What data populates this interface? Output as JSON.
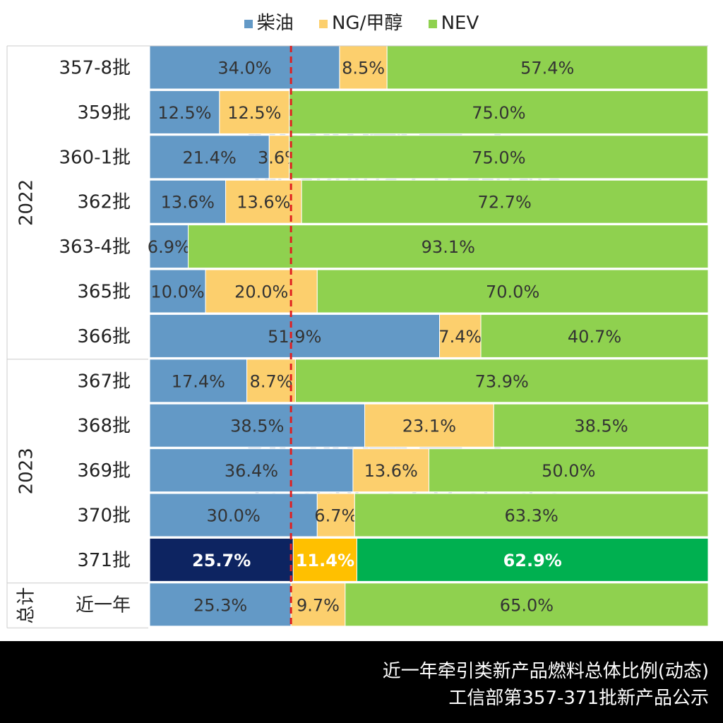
{
  "chart_data": {
    "type": "bar",
    "orientation": "horizontal",
    "stacked": true,
    "percent": true,
    "legend": {
      "placement": "top",
      "entries": [
        {
          "name": "柴油",
          "color": "#6399c6"
        },
        {
          "name": "NG/甲醇",
          "color": "#fccf6d"
        },
        {
          "name": "NEV",
          "color": "#8fd14f"
        }
      ]
    },
    "series_names": [
      "柴油",
      "NG/甲醇",
      "NEV"
    ],
    "groups": [
      {
        "label": "2022",
        "rows": [
          0,
          6
        ]
      },
      {
        "label": "2023",
        "rows": [
          7,
          11
        ]
      },
      {
        "label": "总计",
        "rows": [
          12,
          12
        ]
      }
    ],
    "rows": [
      {
        "label": "357-8批",
        "values": [
          34.0,
          8.5,
          57.4
        ],
        "labels": [
          "34.0%",
          "8.5%",
          "57.4%"
        ]
      },
      {
        "label": "359批",
        "values": [
          12.5,
          12.5,
          75.0
        ],
        "labels": [
          "12.5%",
          "12.5%",
          "75.0%"
        ]
      },
      {
        "label": "360-1批",
        "values": [
          21.4,
          3.6,
          75.0
        ],
        "labels": [
          "21.4%",
          "3.6%",
          "75.0%"
        ]
      },
      {
        "label": "362批",
        "values": [
          13.6,
          13.6,
          72.7
        ],
        "labels": [
          "13.6%",
          "13.6%",
          "72.7%"
        ]
      },
      {
        "label": "363-4批",
        "values": [
          6.9,
          0,
          93.1
        ],
        "labels": [
          "6.9%",
          "",
          "93.1%"
        ]
      },
      {
        "label": "365批",
        "values": [
          10.0,
          20.0,
          70.0
        ],
        "labels": [
          "10.0%",
          "20.0%",
          "70.0%"
        ]
      },
      {
        "label": "366批",
        "values": [
          51.9,
          7.4,
          40.7
        ],
        "labels": [
          "51.9%",
          "7.4%",
          "40.7%"
        ]
      },
      {
        "label": "367批",
        "values": [
          17.4,
          8.7,
          73.9
        ],
        "labels": [
          "17.4%",
          "8.7%",
          "73.9%"
        ]
      },
      {
        "label": "368批",
        "values": [
          38.5,
          23.1,
          38.5
        ],
        "labels": [
          "38.5%",
          "23.1%",
          "38.5%"
        ]
      },
      {
        "label": "369批",
        "values": [
          36.4,
          13.6,
          50.0
        ],
        "labels": [
          "36.4%",
          "13.6%",
          "50.0%"
        ]
      },
      {
        "label": "370批",
        "values": [
          30.0,
          6.7,
          63.3
        ],
        "labels": [
          "30.0%",
          "6.7%",
          "63.3%"
        ]
      },
      {
        "label": "371批",
        "values": [
          25.7,
          11.4,
          62.9
        ],
        "labels": [
          "25.7%",
          "11.4%",
          "62.9%"
        ],
        "highlight": true,
        "highlight_colors": [
          "#0d2461",
          "#ffc000",
          "#00b050"
        ]
      },
      {
        "label": "近一年",
        "values": [
          25.3,
          9.7,
          65.0
        ],
        "labels": [
          "25.3%",
          "9.7%",
          "65.0%"
        ]
      }
    ],
    "reference_line": {
      "value": 25.3,
      "style": "dashed",
      "color": "#e02020"
    },
    "xlim": [
      0,
      100
    ]
  },
  "watermark": {
    "text_cn": "提加商用车",
    "text_en": "TruckPlus CV studio"
  },
  "footer": {
    "line1": "近一年牵引类新产品燃料总体比例(动态)",
    "line2": "工信部第357-371批新产品公示"
  }
}
